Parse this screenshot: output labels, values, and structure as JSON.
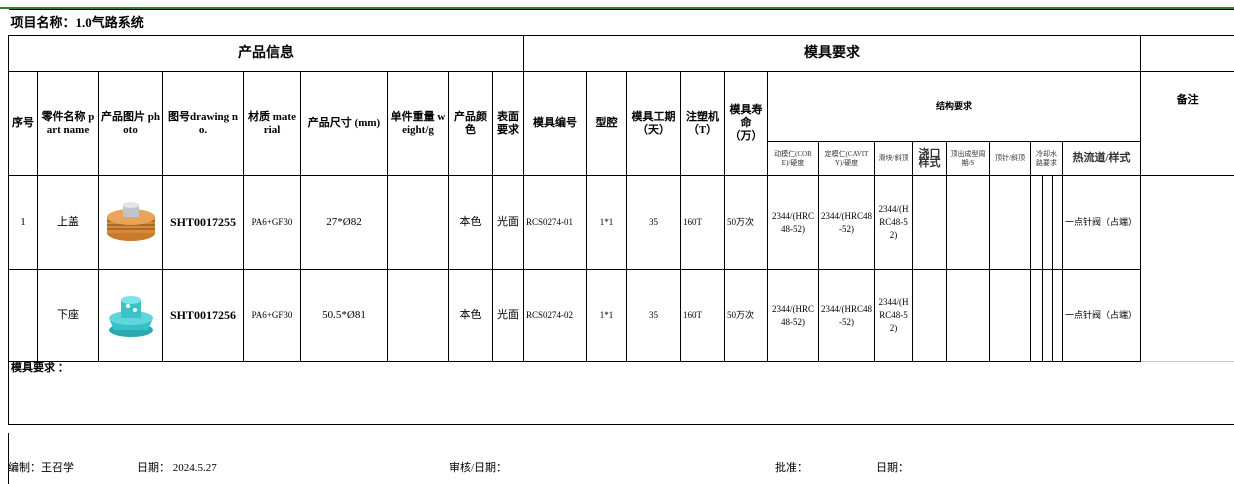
{
  "title": "项目名称：1.0气路系统",
  "sections": [
    "产品信息",
    "模具要求"
  ],
  "headers": [
    "序号",
    "零件名称 part name",
    "产品图片 photo",
    "图号drawing no.",
    "材质 material",
    "产品尺寸 (mm)",
    "单件重量 weight/g",
    "产品颜色",
    "表面要求",
    "模具编号",
    "型腔",
    "模具工期（天）",
    "注塑机（T）",
    "模具寿命（万）"
  ],
  "structure_header": "结构要求",
  "remark_header": "备注",
  "sub_headers": [
    "动模仁(CORE)/硬度",
    "定模仁(CAVITY)/硬度",
    "滑块/斜顶",
    "浇口样式",
    "顶出成型周期/S",
    "顶针/斜顶",
    "冷却水路要求",
    "热流道/样式"
  ],
  "rows": [
    {
      "no": "1",
      "part": "上盖",
      "drawing": "SHT0017255",
      "material": "PA6+GF30",
      "size": "27*Ø82",
      "color": "本色",
      "surface": "光面",
      "mold_no": "RCS0274-01",
      "cavity": "1*1",
      "lead_time": "35",
      "machine": "160T",
      "life": "50万次",
      "core": "2344/(HRC48-52)",
      "cavity_insert": "2344/(HRC48-52)",
      "slider": "2344/(HRC48-52)",
      "runner": "一点针阀（占端）"
    },
    {
      "part": "下座",
      "drawing": "SHT0017256",
      "material": "PA6+GF30",
      "size": "50.5*Ø81",
      "color": "本色",
      "surface": "光面",
      "mold_no": "RCS0274-02",
      "cavity": "1*1",
      "lead_time": "35",
      "machine": "160T",
      "life": "50万次",
      "core": "2344/(HRC48-52)",
      "cavity_insert": "2344/(HRC48-52)",
      "slider": "2344/(HRC48-52)",
      "runner": "一点针阀（占端）"
    }
  ],
  "mold_requirement_label": "模具要求 ：",
  "footer": {
    "prepared": "编制：王召学",
    "date": "日期： 2024.5.27",
    "review": "审核/日期：",
    "approve": "批准：",
    "approve_date": "日期："
  }
}
